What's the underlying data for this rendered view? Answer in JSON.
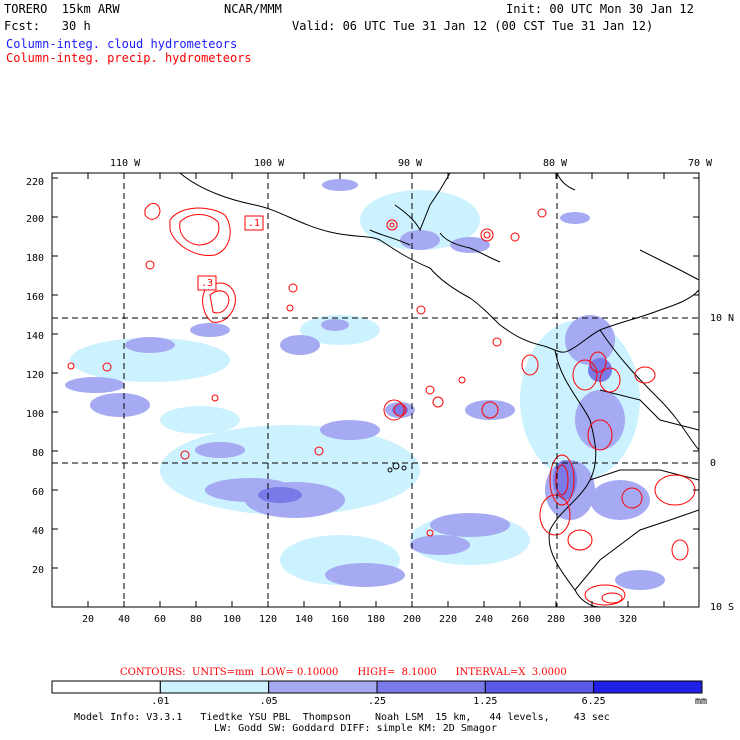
{
  "header": {
    "model": "TORERO  15km ARW",
    "center": "NCAR/MMM",
    "init": "Init: 00 UTC Mon 30 Jan 12",
    "fcst": "Fcst:   30 h",
    "valid": "Valid: 06 UTC Tue 31 Jan 12 (00 CST Tue 31 Jan 12)",
    "legend_cloud": "Column-integ. cloud hydrometeors",
    "legend_precip": "Column-integ. precip. hydrometeors"
  },
  "map": {
    "lon_labels": [
      "110 W",
      "100 W",
      "90 W",
      "80 W",
      "70 W"
    ],
    "lat_labels": [
      "10 N",
      "0",
      "10 S"
    ],
    "y_ticks": [
      "220",
      "200",
      "180",
      "160",
      "140",
      "120",
      "100",
      "80",
      "60",
      "40",
      "20"
    ],
    "x_ticks": [
      "20",
      "40",
      "60",
      "80",
      "100",
      "120",
      "140",
      "160",
      "180",
      "200",
      "220",
      "240",
      "260",
      "280",
      "300",
      "320"
    ],
    "box_labels": [
      ".1",
      ".3"
    ]
  },
  "contour_info": {
    "text": "CONTOURS:  UNITS=mm  LOW= 0.10000      HIGH=  8.1000      INTERVAL=X  3.0000"
  },
  "colorbar": {
    "colors": [
      "#ffffff",
      "#ccf2ff",
      "#a6aaf2",
      "#7a7ae8",
      "#5a5ae8",
      "#1f1fe8"
    ],
    "labels": [
      ".01",
      ".05",
      ".25",
      "1.25",
      "6.25"
    ],
    "units": "mm"
  },
  "footer": {
    "line1": "Model Info: V3.3.1   Tiedtke YSU PBL  Thompson    Noah LSM  15 km,   44 levels,    43 sec",
    "line2": "LW: Godd SW: Goddard DIFF: simple KM: 2D Smagor"
  }
}
